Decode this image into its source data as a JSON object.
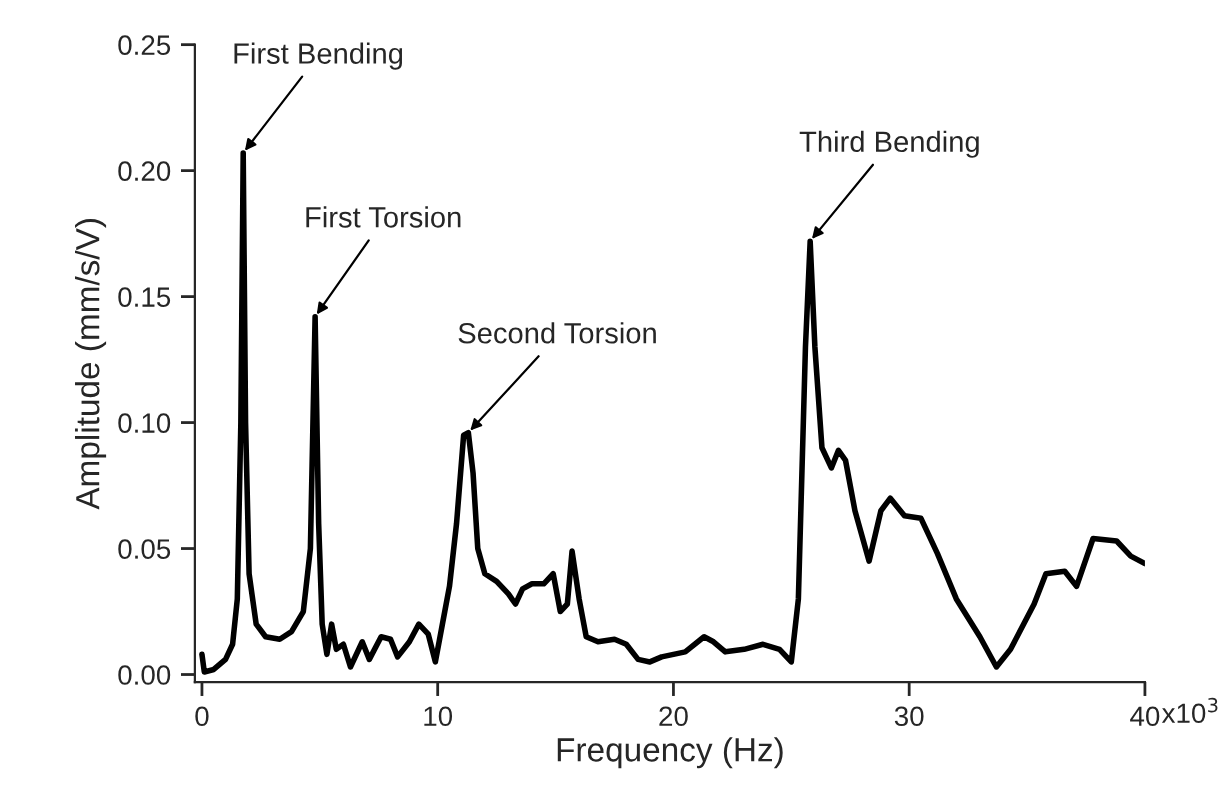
{
  "chart_data": {
    "type": "line",
    "xlabel": "Frequency (Hz)",
    "ylabel": "Amplitude (mm/s/V)",
    "x": [
      0,
      0.1,
      0.5,
      1.0,
      1.3,
      1.5,
      1.65,
      1.75,
      1.85,
      2.0,
      2.3,
      2.7,
      3.3,
      3.8,
      4.3,
      4.6,
      4.8,
      4.95,
      5.1,
      5.3,
      5.5,
      5.7,
      6.0,
      6.3,
      6.8,
      7.1,
      7.6,
      8.0,
      8.3,
      8.8,
      9.2,
      9.6,
      9.9,
      10.2,
      10.5,
      10.8,
      11.1,
      11.3,
      11.5,
      11.7,
      12.0,
      12.5,
      13.0,
      13.3,
      13.6,
      14.0,
      14.5,
      14.9,
      15.2,
      15.5,
      15.7,
      16.0,
      16.3,
      16.8,
      17.5,
      18.0,
      18.5,
      19.0,
      19.5,
      20.5,
      21.3,
      21.7,
      22.2,
      23.0,
      23.8,
      24.5,
      25.0,
      25.3,
      25.6,
      25.8,
      26.0,
      26.3,
      26.7,
      27.0,
      27.3,
      27.7,
      28.3,
      28.8,
      29.2,
      29.8,
      30.5,
      31.2,
      32.0,
      33.0,
      33.7,
      34.3,
      35.3,
      35.8,
      36.6,
      37.1,
      37.8,
      38.8,
      39.4,
      40.0
    ],
    "series": [
      {
        "color": "#000000",
        "values": [
          0.008,
          0.001,
          0.002,
          0.006,
          0.012,
          0.03,
          0.1,
          0.207,
          0.1,
          0.04,
          0.02,
          0.015,
          0.014,
          0.017,
          0.025,
          0.05,
          0.142,
          0.06,
          0.02,
          0.008,
          0.02,
          0.01,
          0.012,
          0.003,
          0.013,
          0.006,
          0.015,
          0.014,
          0.007,
          0.013,
          0.02,
          0.016,
          0.005,
          0.02,
          0.035,
          0.06,
          0.095,
          0.096,
          0.08,
          0.05,
          0.04,
          0.037,
          0.032,
          0.028,
          0.034,
          0.036,
          0.036,
          0.04,
          0.025,
          0.028,
          0.049,
          0.03,
          0.015,
          0.013,
          0.014,
          0.012,
          0.006,
          0.005,
          0.007,
          0.009,
          0.015,
          0.013,
          0.009,
          0.01,
          0.012,
          0.01,
          0.005,
          0.03,
          0.13,
          0.172,
          0.13,
          0.09,
          0.082,
          0.089,
          0.085,
          0.065,
          0.045,
          0.065,
          0.07,
          0.063,
          0.062,
          0.048,
          0.03,
          0.015,
          0.003,
          0.01,
          0.028,
          0.04,
          0.041,
          0.035,
          0.054,
          0.053,
          0.047,
          0.044
        ]
      }
    ],
    "xlim": [
      -0.3,
      40
    ],
    "ylim": [
      -0.003,
      0.25
    ],
    "xticks": [
      0,
      10,
      20,
      30,
      40
    ],
    "yticks": [
      {
        "value": 0,
        "label": "0.00"
      },
      {
        "value": 0.05,
        "label": "0.05"
      },
      {
        "value": 0.1,
        "label": "0.10"
      },
      {
        "value": 0.15,
        "label": "0.15"
      },
      {
        "value": 0.2,
        "label": "0.20"
      },
      {
        "value": 0.25,
        "label": "0.25"
      }
    ],
    "annotations": [
      {
        "text": "First Bending",
        "x": 1.75,
        "y": 0.207
      },
      {
        "text": "First Torsion",
        "x": 4.8,
        "y": 0.142
      },
      {
        "text": "Second Torsion",
        "x": 11.3,
        "y": 0.096
      },
      {
        "text": "Third Bending",
        "x": 25.8,
        "y": 0.172
      },
      "x10$^{3}$"
    ],
    "marker": "none",
    "line_style": "solid"
  }
}
